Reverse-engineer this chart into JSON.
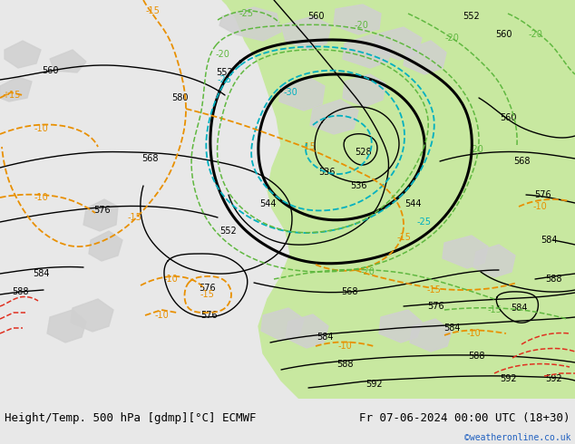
{
  "title_left": "Height/Temp. 500 hPa [gdmp][°C] ECMWF",
  "title_right": "Fr 07-06-2024 00:00 UTC (18+30)",
  "credit": "©weatheronline.co.uk",
  "bg_grey": "#d0d0d0",
  "bg_green": "#c8e8a0",
  "bg_light": "#e8e8e8",
  "c_black": "#000000",
  "c_orange": "#e89000",
  "c_cyan": "#00b0c0",
  "c_green": "#60b840",
  "c_red": "#e03020",
  "c_credit": "#2060c0",
  "c_bar": "#e8e8e8",
  "fs_title": 9,
  "fs_label": 7,
  "fs_credit": 7
}
